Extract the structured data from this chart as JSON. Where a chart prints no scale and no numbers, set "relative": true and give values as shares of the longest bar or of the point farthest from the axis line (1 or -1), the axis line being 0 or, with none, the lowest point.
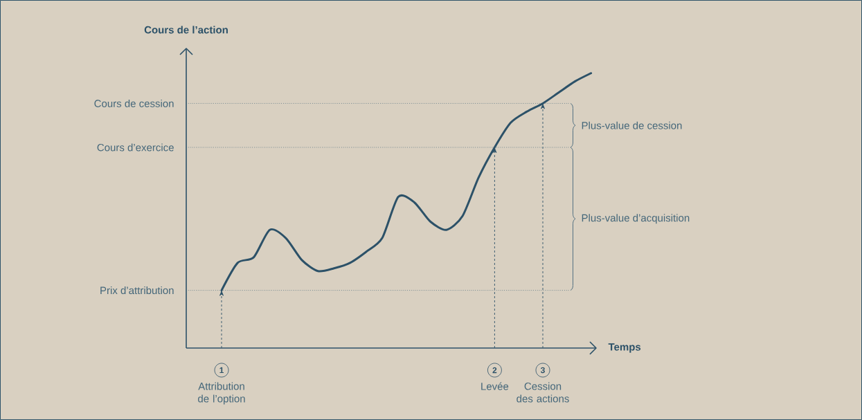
{
  "chart_data": {
    "type": "line",
    "relative": true,
    "color": "#2c5168",
    "ylabel": "Cours de l’action",
    "xlabel": "Temps",
    "categories": [
      null,
      null,
      null,
      null,
      null,
      null,
      null,
      null,
      null,
      null,
      null,
      null,
      null,
      null,
      null,
      null,
      null,
      null,
      null,
      null,
      null,
      null,
      null,
      null
    ],
    "values": [
      0.21,
      0.31,
      0.33,
      0.43,
      0.4,
      0.32,
      0.28,
      0.29,
      0.31,
      0.35,
      0.4,
      0.55,
      0.53,
      0.46,
      0.43,
      0.48,
      0.62,
      0.73,
      0.82,
      0.86,
      0.89,
      0.93,
      0.97,
      1.0
    ],
    "ref_lines": [
      {
        "axis": "y",
        "value": 0.21,
        "label": "Prix d’attribution",
        "line_style": "dotted"
      },
      {
        "axis": "y",
        "value": 0.73,
        "label": "Cours d’exercice",
        "line_style": "dotted"
      },
      {
        "axis": "y",
        "value": 0.89,
        "label": "Cours de cession",
        "line_style": "dotted"
      }
    ],
    "annotations": [
      "Plus-value de cession",
      "Plus-value d’acquisition",
      "1",
      "Attribution de l’option",
      "2",
      "Levée",
      "3",
      "Cession des actions"
    ]
  }
}
